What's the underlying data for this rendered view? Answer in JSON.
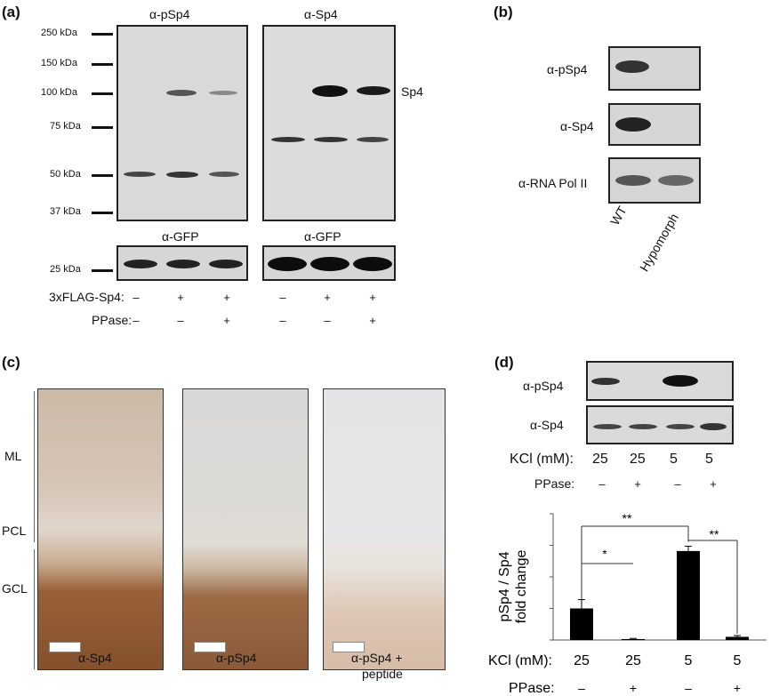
{
  "panel_a": {
    "label": "(a)",
    "blot1_title": "α-pSp4",
    "blot2_title": "α-Sp4",
    "mw_markers": [
      "250 kDa",
      "150 kDa",
      "100 kDa",
      "75 kDa",
      "50 kDa",
      "37 kDa"
    ],
    "band_label": "Sp4",
    "gfp_title_1": "α-GFP",
    "gfp_title_2": "α-GFP",
    "gfp_marker": "25 kDa",
    "row1_label": "3xFLAG-Sp4:",
    "row2_label": "PPase:",
    "row1_signs": [
      "–",
      "+",
      "+",
      "–",
      "+",
      "+"
    ],
    "row2_signs": [
      "–",
      "–",
      "+",
      "–",
      "–",
      "+"
    ]
  },
  "panel_b": {
    "label": "(b)",
    "rows": [
      "α-pSp4",
      "α-Sp4",
      "α-RNA Pol II"
    ],
    "lanes": [
      "WT",
      "Hypomorph"
    ]
  },
  "panel_c": {
    "label": "(c)",
    "layers": [
      "ML",
      "PCL",
      "GCL"
    ],
    "captions": [
      "α-Sp4",
      "α-pSp4",
      "α-pSp4 +",
      "peptide"
    ]
  },
  "panel_d": {
    "label": "(d)",
    "rows": [
      "α-pSp4",
      "α-Sp4"
    ],
    "kcl_label": "KCl (mM):",
    "kcl_values": [
      "25",
      "25",
      "5",
      "5"
    ],
    "ppase_label": "PPase:",
    "ppase_signs": [
      "–",
      "+",
      "–",
      "+"
    ],
    "sig_labels": [
      "**",
      "*",
      "**"
    ],
    "ylabel_1": "pSp4 / Sp4",
    "ylabel_2": "fold change",
    "y_ticks": [
      "0",
      "1",
      "2",
      "3",
      "4"
    ]
  },
  "chart_data": {
    "type": "bar",
    "categories": [
      "25 / –",
      "25 / +",
      "5 / –",
      "5 / +"
    ],
    "values": [
      1.0,
      0.03,
      2.82,
      0.1
    ],
    "errors": [
      0.28,
      0.02,
      0.15,
      0.04
    ],
    "ylim": [
      0,
      4
    ],
    "ylabel": "pSp4 / Sp4 fold change",
    "bar_color": "#000000"
  }
}
